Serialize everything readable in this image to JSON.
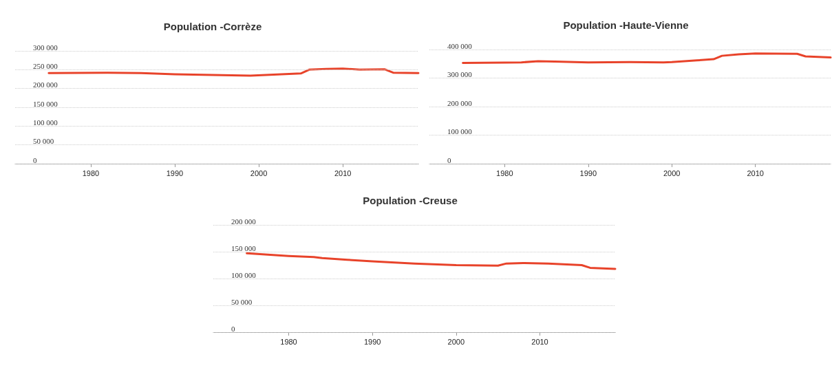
{
  "chart_data": [
    {
      "type": "line",
      "title": "Population -Corrèze",
      "x": [
        1975,
        1982,
        1986,
        1990,
        1999,
        2005,
        2006,
        2008,
        2010,
        2012,
        2015,
        2016,
        2019
      ],
      "values": [
        241000,
        242000,
        241000,
        238000,
        234000,
        240000,
        250000,
        252000,
        253000,
        250000,
        251000,
        242000,
        241000
      ],
      "color": "#e8432a",
      "xlim": [
        1971,
        2019
      ],
      "xticks": [
        1980,
        1990,
        2000,
        2010
      ],
      "ylim": [
        0,
        300000
      ],
      "yticks": [
        {
          "value": 0,
          "label": "0"
        },
        {
          "value": 50000,
          "label": "50 000"
        },
        {
          "value": 100000,
          "label": "100 000"
        },
        {
          "value": 150000,
          "label": "150 000"
        },
        {
          "value": 200000,
          "label": "200 000"
        },
        {
          "value": 250000,
          "label": "250 000"
        },
        {
          "value": 300000,
          "label": "300 000"
        }
      ],
      "grid": "y",
      "marker": "none",
      "line_style": "solid"
    },
    {
      "type": "line",
      "title": "Population -Haute-Vienne",
      "x": [
        1975,
        1980,
        1982,
        1984,
        1986,
        1990,
        1995,
        1999,
        2000,
        2003,
        2005,
        2006,
        2008,
        2010,
        2015,
        2016,
        2019
      ],
      "values": [
        353000,
        354000,
        355000,
        359000,
        358000,
        355000,
        356000,
        355000,
        356000,
        362000,
        366000,
        378000,
        383000,
        386000,
        385000,
        376000,
        372000
      ],
      "color": "#e8432a",
      "xlim": [
        1971,
        2019
      ],
      "xticks": [
        1980,
        1990,
        2000,
        2010
      ],
      "ylim": [
        0,
        400000
      ],
      "yticks": [
        {
          "value": 0,
          "label": "0"
        },
        {
          "value": 100000,
          "label": "100 000"
        },
        {
          "value": 200000,
          "label": "200 000"
        },
        {
          "value": 300000,
          "label": "300 000"
        },
        {
          "value": 400000,
          "label": "400 000"
        }
      ],
      "grid": "y",
      "marker": "none",
      "line_style": "solid"
    },
    {
      "type": "line",
      "title": "Population -Creuse",
      "x": [
        1975,
        1980,
        1983,
        1984,
        1987,
        1990,
        1995,
        2000,
        2005,
        2006,
        2008,
        2011,
        2015,
        2016,
        2019
      ],
      "values": [
        147000,
        142000,
        140000,
        138000,
        135000,
        132000,
        128000,
        125000,
        124000,
        128000,
        129000,
        128000,
        125000,
        120000,
        118000
      ],
      "color": "#e8432a",
      "xlim": [
        1971,
        2019
      ],
      "xticks": [
        1980,
        1990,
        2000,
        2010
      ],
      "ylim": [
        0,
        200000
      ],
      "yticks": [
        {
          "value": 0,
          "label": "0"
        },
        {
          "value": 50000,
          "label": "50 000"
        },
        {
          "value": 100000,
          "label": "100 000"
        },
        {
          "value": 150000,
          "label": "150 000"
        },
        {
          "value": 200000,
          "label": "200 000"
        }
      ],
      "grid": "y",
      "marker": "none",
      "line_style": "solid"
    }
  ]
}
